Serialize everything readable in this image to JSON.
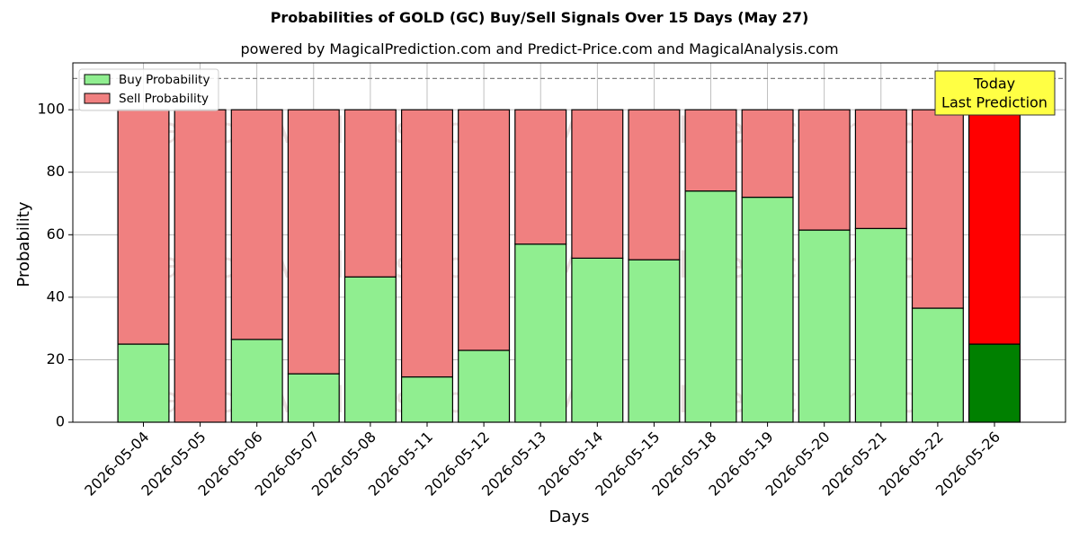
{
  "chart_data": {
    "type": "bar",
    "stacked": true,
    "title": "Probabilities of GOLD (GC) Buy/Sell Signals Over 15 Days (May 27)",
    "subtitle": "powered by MagicalPrediction.com and Predict-Price.com and MagicalAnalysis.com",
    "xlabel": "Days",
    "ylabel": "Probability",
    "ylim": [
      0,
      115
    ],
    "yticks": [
      0,
      20,
      40,
      60,
      80,
      100
    ],
    "grid": true,
    "legend_position": "top-left",
    "reference_line": {
      "value": 110,
      "style": "dashed",
      "color": "#808080"
    },
    "categories": [
      "2026-05-04",
      "2026-05-05",
      "2026-05-06",
      "2026-05-07",
      "2026-05-08",
      "2026-05-11",
      "2026-05-12",
      "2026-05-13",
      "2026-05-14",
      "2026-05-15",
      "2026-05-18",
      "2026-05-19",
      "2026-05-20",
      "2026-05-21",
      "2026-05-22",
      "2026-05-26"
    ],
    "series": [
      {
        "name": "Buy Probability",
        "color": "#90ee90",
        "values": [
          25,
          0,
          26.5,
          15.5,
          46.5,
          14.5,
          23,
          57,
          52.5,
          52,
          74,
          72,
          61.5,
          62,
          36.5,
          25
        ]
      },
      {
        "name": "Sell Probability",
        "color": "#f08080",
        "values": [
          75,
          100,
          73.5,
          84.5,
          53.5,
          85.5,
          77,
          43,
          47.5,
          48,
          26,
          28,
          38.5,
          38,
          63.5,
          75
        ]
      }
    ],
    "highlight": {
      "index": 15,
      "buy_color": "#008000",
      "sell_color": "#ff0000"
    },
    "annotation": {
      "text_line1": "Today",
      "text_line2": "Last Prediction",
      "background": "#ffff44"
    },
    "watermarks": [
      "MagicalAnalysis.com",
      "MagicalPrediction.com"
    ]
  }
}
